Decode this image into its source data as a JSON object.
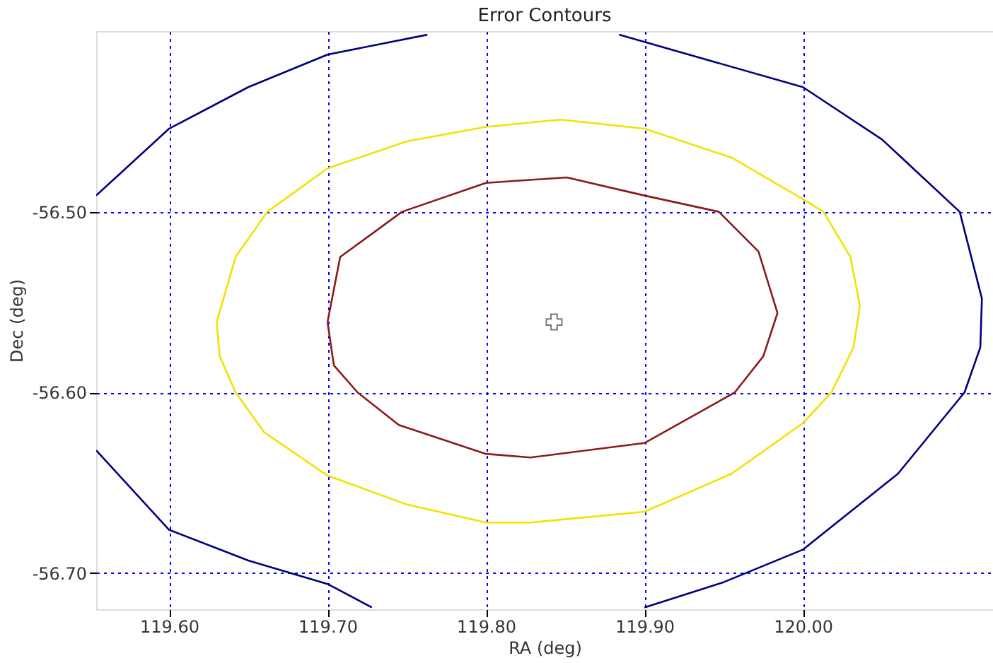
{
  "chart_data": {
    "type": "line",
    "title": "Error Contours",
    "xlabel": "RA (deg)",
    "ylabel": "Dec (deg)",
    "xlim": [
      119.554,
      120.12
    ],
    "ylim": [
      -56.72,
      -56.4
    ],
    "xticks": [
      {
        "value": 119.6,
        "label": "119.60"
      },
      {
        "value": 119.7,
        "label": "119.70"
      },
      {
        "value": 119.8,
        "label": "119.80"
      },
      {
        "value": 119.9,
        "label": "119.90"
      },
      {
        "value": 120.0,
        "label": "120.00"
      }
    ],
    "yticks": [
      {
        "value": -56.5,
        "label": "-56.50"
      },
      {
        "value": -56.6,
        "label": "-56.60"
      },
      {
        "value": -56.7,
        "label": "-56.70"
      }
    ],
    "grid": true,
    "line_style": "solid",
    "marker": "none",
    "series": [
      {
        "color": "#000080",
        "x": [
          119.554,
          119.6,
          119.65,
          119.7,
          119.763,
          null,
          119.884,
          120.0,
          120.05,
          120.099,
          120.113,
          120.112,
          120.102,
          120.06,
          120.0,
          119.95,
          119.9,
          null,
          119.728,
          119.7,
          119.65,
          119.6,
          119.554
        ],
        "values": [
          -56.491,
          -56.454,
          -56.431,
          -56.413,
          -56.402,
          null,
          -56.402,
          -56.431,
          -56.46,
          -56.5,
          -56.548,
          -56.575,
          -56.6,
          -56.645,
          -56.687,
          -56.705,
          -56.719,
          null,
          -56.719,
          -56.706,
          -56.693,
          -56.676,
          -56.632
        ]
      },
      {
        "color": "#f2e200",
        "x": [
          119.63,
          119.642,
          119.662,
          119.7,
          119.75,
          119.8,
          119.847,
          119.9,
          119.955,
          120.0,
          120.013,
          120.03,
          120.036,
          null,
          120.036,
          120.032,
          120.018,
          120.0,
          119.955,
          119.9,
          119.828,
          119.8,
          119.75,
          119.7,
          119.66,
          119.642,
          119.632,
          119.63
        ],
        "values": [
          -56.561,
          -56.525,
          -56.5,
          -56.476,
          -56.461,
          -56.453,
          -56.449,
          -56.454,
          -56.47,
          -56.493,
          -56.5,
          -56.525,
          -56.552,
          null,
          -56.552,
          -56.575,
          -56.6,
          -56.617,
          -56.645,
          -56.666,
          -56.672,
          -56.672,
          -56.662,
          -56.646,
          -56.622,
          -56.6,
          -56.58,
          -56.561
        ]
      },
      {
        "color": "#8b1a1a",
        "x": [
          119.7,
          119.708,
          119.747,
          119.8,
          119.851,
          119.9,
          119.947,
          119.972,
          119.984,
          null,
          119.984,
          119.975,
          119.957,
          119.9,
          119.828,
          119.8,
          119.745,
          119.719,
          119.704,
          119.7
        ],
        "values": [
          -56.561,
          -56.525,
          -56.5,
          -56.484,
          -56.481,
          -56.491,
          -56.5,
          -56.522,
          -56.556,
          null,
          -56.556,
          -56.58,
          -56.6,
          -56.628,
          -56.636,
          -56.634,
          -56.618,
          -56.6,
          -56.585,
          -56.561
        ]
      },
      {
        "type": "scatter",
        "marker": "cross",
        "color": "#404040",
        "x": [
          119.843
        ],
        "values": [
          -56.561
        ]
      }
    ]
  }
}
